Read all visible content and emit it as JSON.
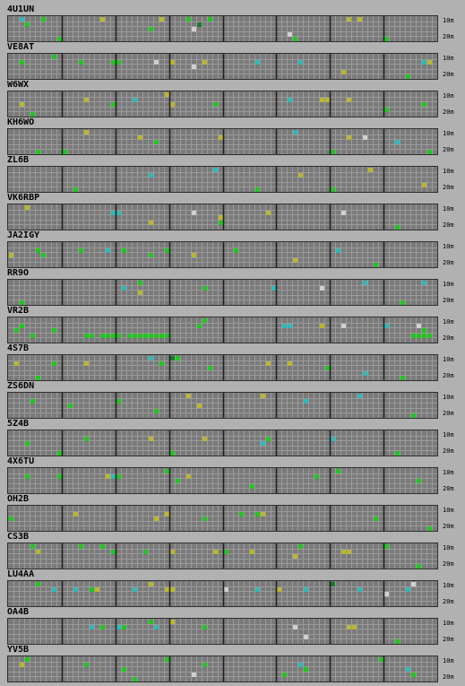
{
  "bands": {
    "top": "10m",
    "bottom": "20m"
  },
  "colors": {
    "background": "#b1b1b1",
    "grid_bg": "#7a7a7a",
    "grid_line": "#9a9a9a",
    "separator": "#1e1e1e",
    "green": "#22c422",
    "yellow": "#b8b830",
    "cyan": "#30b8b8",
    "white": "#d0d0d0",
    "dgreen": "#1a7a2a"
  },
  "beacons": [
    {
      "call": "4U1UN",
      "spots": [
        [
          2,
          0,
          "cyan"
        ],
        [
          3,
          1,
          "green"
        ],
        [
          6,
          0,
          "green"
        ],
        [
          9,
          4,
          "green"
        ],
        [
          17,
          0,
          "yellow"
        ],
        [
          26,
          2,
          "green"
        ],
        [
          28,
          0,
          "yellow"
        ],
        [
          33,
          0,
          "green"
        ],
        [
          34,
          2,
          "white"
        ],
        [
          35,
          1,
          "dgreen"
        ],
        [
          37,
          0,
          "green"
        ],
        [
          52,
          3,
          "white"
        ],
        [
          53,
          4,
          "green"
        ],
        [
          63,
          0,
          "yellow"
        ],
        [
          65,
          0,
          "yellow"
        ],
        [
          70,
          4,
          "green"
        ]
      ]
    },
    {
      "call": "VE8AT",
      "spots": [
        [
          2,
          1,
          "green"
        ],
        [
          8,
          0,
          "green"
        ],
        [
          13,
          1,
          "green"
        ],
        [
          19,
          1,
          "green"
        ],
        [
          20,
          1,
          "green"
        ],
        [
          27,
          1,
          "white"
        ],
        [
          30,
          1,
          "yellow"
        ],
        [
          34,
          2,
          "white"
        ],
        [
          36,
          1,
          "yellow"
        ],
        [
          46,
          1,
          "cyan"
        ],
        [
          54,
          1,
          "cyan"
        ],
        [
          62,
          3,
          "yellow"
        ],
        [
          77,
          1,
          "cyan"
        ],
        [
          78,
          1,
          "yellow"
        ],
        [
          74,
          4,
          "green"
        ]
      ]
    },
    {
      "call": "W6WX",
      "spots": [
        [
          2,
          2,
          "yellow"
        ],
        [
          4,
          4,
          "green"
        ],
        [
          14,
          1,
          "yellow"
        ],
        [
          19,
          2,
          "green"
        ],
        [
          23,
          1,
          "cyan"
        ],
        [
          29,
          0,
          "yellow"
        ],
        [
          30,
          2,
          "yellow"
        ],
        [
          38,
          2,
          "green"
        ],
        [
          52,
          1,
          "cyan"
        ],
        [
          58,
          1,
          "yellow"
        ],
        [
          59,
          1,
          "yellow"
        ],
        [
          63,
          1,
          "yellow"
        ],
        [
          70,
          3,
          "green"
        ],
        [
          77,
          2,
          "green"
        ]
      ]
    },
    {
      "call": "KH6WO",
      "spots": [
        [
          5,
          4,
          "green"
        ],
        [
          10,
          4,
          "green"
        ],
        [
          14,
          0,
          "yellow"
        ],
        [
          24,
          1,
          "yellow"
        ],
        [
          27,
          2,
          "green"
        ],
        [
          39,
          1,
          "yellow"
        ],
        [
          53,
          0,
          "cyan"
        ],
        [
          60,
          4,
          "green"
        ],
        [
          63,
          1,
          "yellow"
        ],
        [
          66,
          1,
          "white"
        ],
        [
          72,
          2,
          "cyan"
        ],
        [
          78,
          4,
          "green"
        ]
      ]
    },
    {
      "call": "ZL6B",
      "spots": [
        [
          12,
          4,
          "green"
        ],
        [
          26,
          1,
          "cyan"
        ],
        [
          38,
          0,
          "cyan"
        ],
        [
          46,
          4,
          "green"
        ],
        [
          54,
          1,
          "yellow"
        ],
        [
          67,
          0,
          "yellow"
        ],
        [
          77,
          3,
          "yellow"
        ],
        [
          60,
          4,
          "green"
        ]
      ]
    },
    {
      "call": "VK6RBP",
      "spots": [
        [
          3,
          0,
          "yellow"
        ],
        [
          19,
          1,
          "cyan"
        ],
        [
          20,
          1,
          "cyan"
        ],
        [
          26,
          3,
          "yellow"
        ],
        [
          34,
          1,
          "white"
        ],
        [
          39,
          2,
          "yellow"
        ],
        [
          39,
          3,
          "green"
        ],
        [
          48,
          1,
          "yellow"
        ],
        [
          62,
          1,
          "white"
        ],
        [
          72,
          4,
          "green"
        ]
      ]
    },
    {
      "call": "JA2IGY",
      "spots": [
        [
          0,
          2,
          "yellow"
        ],
        [
          5,
          1,
          "green"
        ],
        [
          6,
          2,
          "green"
        ],
        [
          13,
          1,
          "green"
        ],
        [
          18,
          1,
          "cyan"
        ],
        [
          21,
          1,
          "green"
        ],
        [
          26,
          2,
          "green"
        ],
        [
          29,
          1,
          "green"
        ],
        [
          34,
          2,
          "yellow"
        ],
        [
          42,
          1,
          "green"
        ],
        [
          53,
          3,
          "yellow"
        ],
        [
          61,
          1,
          "cyan"
        ],
        [
          68,
          4,
          "green"
        ]
      ]
    },
    {
      "call": "RR9O",
      "spots": [
        [
          2,
          4,
          "green"
        ],
        [
          21,
          1,
          "cyan"
        ],
        [
          24,
          0,
          "green"
        ],
        [
          24,
          2,
          "yellow"
        ],
        [
          36,
          1,
          "green"
        ],
        [
          49,
          1,
          "cyan"
        ],
        [
          58,
          1,
          "white"
        ],
        [
          66,
          0,
          "cyan"
        ],
        [
          77,
          0,
          "cyan"
        ],
        [
          73,
          4,
          "green"
        ]
      ]
    },
    {
      "call": "VR2B",
      "spots": [
        [
          1,
          2,
          "green"
        ],
        [
          2,
          1,
          "green"
        ],
        [
          4,
          3,
          "green"
        ],
        [
          8,
          2,
          "green"
        ],
        [
          14,
          3,
          "green"
        ],
        [
          15,
          3,
          "green"
        ],
        [
          17,
          3,
          "green"
        ],
        [
          18,
          3,
          "green"
        ],
        [
          19,
          3,
          "green"
        ],
        [
          20,
          3,
          "green"
        ],
        [
          22,
          3,
          "green"
        ],
        [
          23,
          3,
          "green"
        ],
        [
          24,
          3,
          "green"
        ],
        [
          25,
          3,
          "green"
        ],
        [
          26,
          3,
          "green"
        ],
        [
          27,
          3,
          "green"
        ],
        [
          28,
          3,
          "green"
        ],
        [
          29,
          3,
          "green"
        ],
        [
          35,
          1,
          "green"
        ],
        [
          36,
          0,
          "green"
        ],
        [
          51,
          1,
          "cyan"
        ],
        [
          52,
          1,
          "cyan"
        ],
        [
          58,
          1,
          "yellow"
        ],
        [
          62,
          1,
          "white"
        ],
        [
          70,
          1,
          "cyan"
        ],
        [
          75,
          3,
          "green"
        ],
        [
          76,
          3,
          "green"
        ],
        [
          77,
          3,
          "green"
        ],
        [
          78,
          3,
          "green"
        ],
        [
          76,
          1,
          "white"
        ],
        [
          77,
          2,
          "green"
        ]
      ]
    },
    {
      "call": "4S7B",
      "spots": [
        [
          1,
          1,
          "yellow"
        ],
        [
          5,
          4,
          "green"
        ],
        [
          8,
          1,
          "green"
        ],
        [
          14,
          1,
          "yellow"
        ],
        [
          26,
          0,
          "cyan"
        ],
        [
          28,
          1,
          "green"
        ],
        [
          30,
          0,
          "dgreen"
        ],
        [
          31,
          0,
          "green"
        ],
        [
          37,
          2,
          "green"
        ],
        [
          48,
          1,
          "yellow"
        ],
        [
          52,
          1,
          "yellow"
        ],
        [
          59,
          2,
          "green"
        ],
        [
          66,
          3,
          "cyan"
        ],
        [
          73,
          4,
          "green"
        ]
      ]
    },
    {
      "call": "ZS6DN",
      "spots": [
        [
          4,
          1,
          "green"
        ],
        [
          11,
          2,
          "green"
        ],
        [
          20,
          1,
          "green"
        ],
        [
          27,
          3,
          "green"
        ],
        [
          33,
          0,
          "yellow"
        ],
        [
          35,
          2,
          "yellow"
        ],
        [
          47,
          0,
          "yellow"
        ],
        [
          55,
          1,
          "cyan"
        ],
        [
          65,
          0,
          "cyan"
        ],
        [
          75,
          4,
          "green"
        ]
      ]
    },
    {
      "call": "5Z4B",
      "spots": [
        [
          3,
          2,
          "green"
        ],
        [
          9,
          4,
          "green"
        ],
        [
          14,
          1,
          "green"
        ],
        [
          26,
          1,
          "yellow"
        ],
        [
          30,
          4,
          "green"
        ],
        [
          36,
          1,
          "yellow"
        ],
        [
          47,
          2,
          "cyan"
        ],
        [
          48,
          1,
          "green"
        ],
        [
          60,
          1,
          "cyan"
        ],
        [
          72,
          4,
          "green"
        ]
      ]
    },
    {
      "call": "4X6TU",
      "spots": [
        [
          3,
          1,
          "green"
        ],
        [
          9,
          1,
          "green"
        ],
        [
          18,
          1,
          "yellow"
        ],
        [
          19,
          1,
          "cyan"
        ],
        [
          20,
          1,
          "green"
        ],
        [
          29,
          0,
          "green"
        ],
        [
          31,
          2,
          "green"
        ],
        [
          33,
          1,
          "yellow"
        ],
        [
          45,
          3,
          "green"
        ],
        [
          57,
          1,
          "green"
        ],
        [
          61,
          0,
          "green"
        ],
        [
          76,
          2,
          "green"
        ]
      ]
    },
    {
      "call": "OH2B",
      "spots": [
        [
          0,
          2,
          "green"
        ],
        [
          12,
          1,
          "yellow"
        ],
        [
          27,
          2,
          "yellow"
        ],
        [
          29,
          1,
          "yellow"
        ],
        [
          36,
          2,
          "green"
        ],
        [
          43,
          1,
          "green"
        ],
        [
          46,
          1,
          "green"
        ],
        [
          47,
          1,
          "yellow"
        ],
        [
          68,
          2,
          "green"
        ],
        [
          78,
          4,
          "green"
        ]
      ]
    },
    {
      "call": "CS3B",
      "spots": [
        [
          4,
          0,
          "green"
        ],
        [
          5,
          1,
          "yellow"
        ],
        [
          13,
          0,
          "green"
        ],
        [
          17,
          0,
          "green"
        ],
        [
          19,
          1,
          "green"
        ],
        [
          25,
          1,
          "green"
        ],
        [
          30,
          1,
          "yellow"
        ],
        [
          38,
          1,
          "yellow"
        ],
        [
          40,
          1,
          "green"
        ],
        [
          45,
          1,
          "yellow"
        ],
        [
          53,
          2,
          "yellow"
        ],
        [
          54,
          0,
          "green"
        ],
        [
          62,
          1,
          "yellow"
        ],
        [
          63,
          1,
          "yellow"
        ],
        [
          70,
          0,
          "green"
        ],
        [
          76,
          4,
          "green"
        ]
      ]
    },
    {
      "call": "LU4AA",
      "spots": [
        [
          5,
          0,
          "green"
        ],
        [
          8,
          1,
          "cyan"
        ],
        [
          12,
          1,
          "cyan"
        ],
        [
          15,
          1,
          "green"
        ],
        [
          16,
          1,
          "yellow"
        ],
        [
          23,
          1,
          "cyan"
        ],
        [
          26,
          0,
          "yellow"
        ],
        [
          29,
          1,
          "yellow"
        ],
        [
          30,
          1,
          "yellow"
        ],
        [
          40,
          1,
          "white"
        ],
        [
          46,
          1,
          "cyan"
        ],
        [
          50,
          1,
          "yellow"
        ],
        [
          55,
          1,
          "cyan"
        ],
        [
          60,
          0,
          "dgreen"
        ],
        [
          65,
          1,
          "cyan"
        ],
        [
          70,
          2,
          "white"
        ],
        [
          74,
          1,
          "cyan"
        ],
        [
          75,
          0,
          "white"
        ]
      ]
    },
    {
      "call": "OA4B",
      "spots": [
        [
          15,
          1,
          "cyan"
        ],
        [
          17,
          1,
          "green"
        ],
        [
          20,
          1,
          "cyan"
        ],
        [
          21,
          1,
          "green"
        ],
        [
          26,
          0,
          "green"
        ],
        [
          27,
          1,
          "cyan"
        ],
        [
          30,
          0,
          "yellow"
        ],
        [
          36,
          1,
          "green"
        ],
        [
          53,
          1,
          "white"
        ],
        [
          55,
          3,
          "white"
        ],
        [
          63,
          1,
          "yellow"
        ],
        [
          64,
          1,
          "yellow"
        ],
        [
          72,
          4,
          "green"
        ]
      ]
    },
    {
      "call": "YV5B",
      "spots": [
        [
          2,
          1,
          "yellow"
        ],
        [
          3,
          0,
          "green"
        ],
        [
          14,
          1,
          "green"
        ],
        [
          21,
          2,
          "green"
        ],
        [
          23,
          4,
          "green"
        ],
        [
          29,
          0,
          "green"
        ],
        [
          34,
          3,
          "white"
        ],
        [
          36,
          1,
          "green"
        ],
        [
          51,
          3,
          "green"
        ],
        [
          54,
          1,
          "cyan"
        ],
        [
          55,
          2,
          "green"
        ],
        [
          69,
          0,
          "green"
        ],
        [
          74,
          2,
          "cyan"
        ],
        [
          75,
          3,
          "green"
        ]
      ]
    }
  ]
}
